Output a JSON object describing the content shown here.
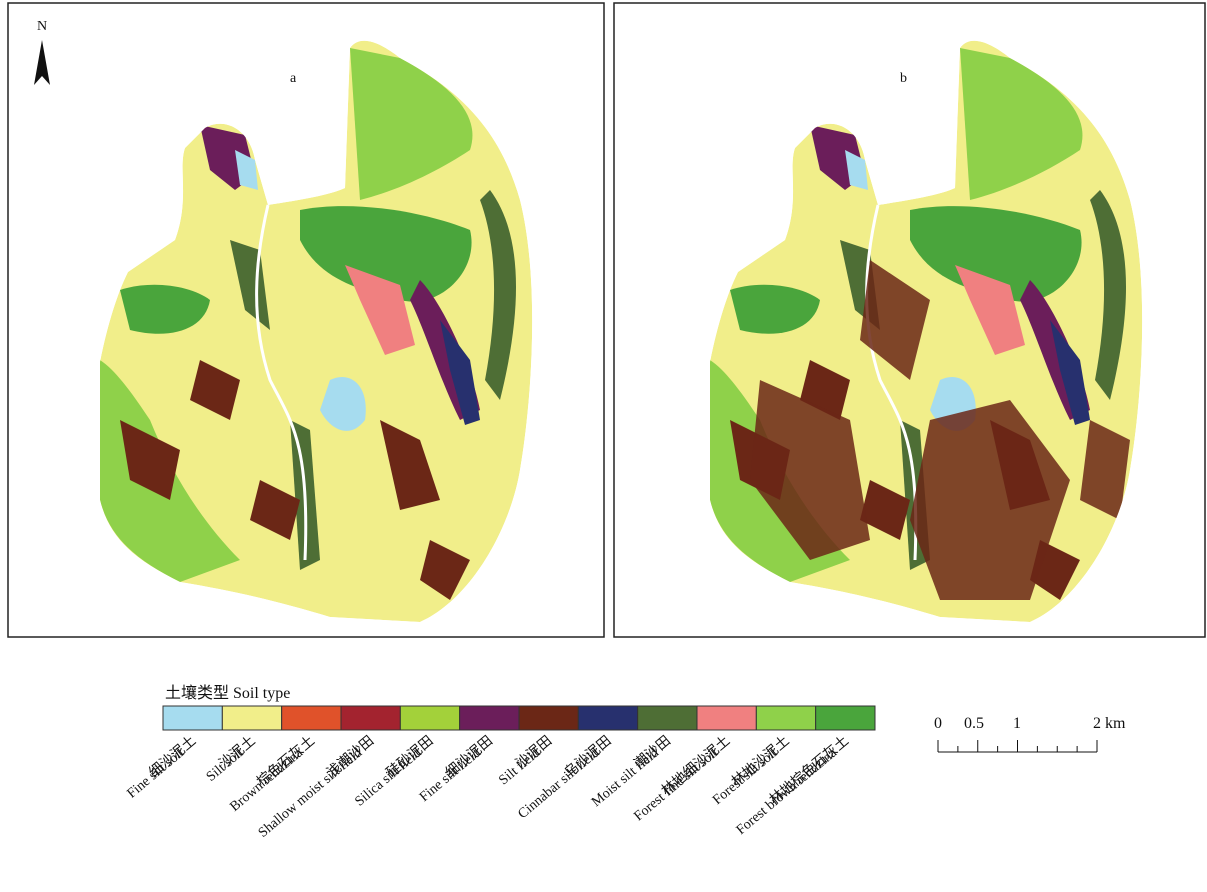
{
  "panels": [
    {
      "label": "a"
    },
    {
      "label": "b"
    }
  ],
  "north_arrow": "N",
  "legend": {
    "title": "土壤类型 Soil type",
    "items": [
      {
        "zh": "细沙泥土",
        "en": "Fine silt soil",
        "color": "#a6dcef"
      },
      {
        "zh": "沙泥土",
        "en": "Silt soil",
        "color": "#f1ee8a"
      },
      {
        "zh": "棕色石灰土",
        "en": "Brown rendzina",
        "color": "#e0522a"
      },
      {
        "zh": "浅潮沙田",
        "en": "Shallow moist silt field",
        "color": "#a3232f"
      },
      {
        "zh": "硅砂泥田",
        "en": "Silica silt field",
        "color": "#a3d13a"
      },
      {
        "zh": "细沙泥田",
        "en": "Fine silt field",
        "color": "#6b1e5a"
      },
      {
        "zh": "沙泥田",
        "en": "Silt field",
        "color": "#6b2716"
      },
      {
        "zh": "乌沙泥田",
        "en": "Cinnabar silt field",
        "color": "#27306e"
      },
      {
        "zh": "潮沙田",
        "en": "Moist silt field",
        "color": "#4e6e35"
      },
      {
        "zh": "林地细沙泥土",
        "en": "Forest fine silt soil",
        "color": "#f08080"
      },
      {
        "zh": "林地沙泥土",
        "en": "Forest silt soil",
        "color": "#8fd14a"
      },
      {
        "zh": "林地棕色石灰土",
        "en": "Forest brown rendzina",
        "color": "#4aa53c"
      }
    ]
  },
  "scale_bar": {
    "labels": [
      "0",
      "0.5",
      "1",
      "2 km"
    ]
  }
}
